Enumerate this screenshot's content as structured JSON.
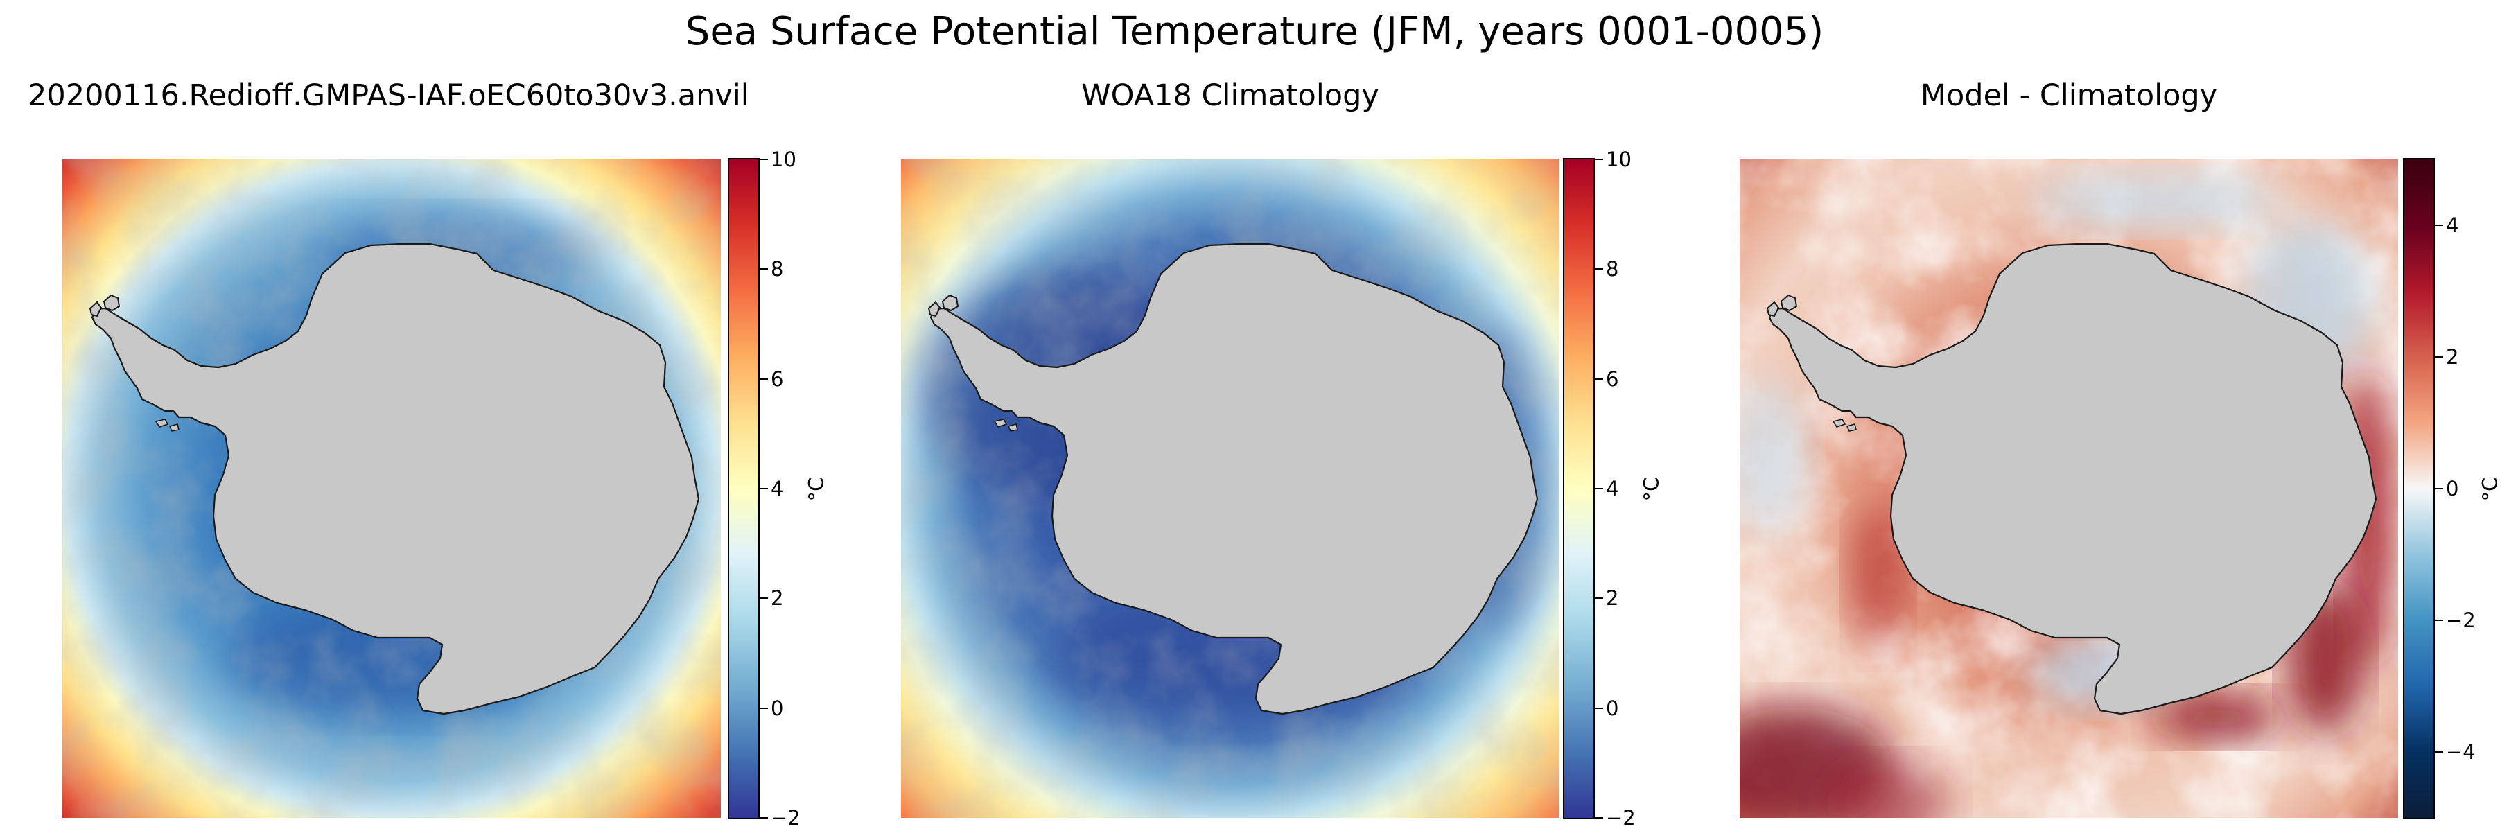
{
  "figure": {
    "title": "Sea Surface Potential Temperature (JFM, years 0001-0005)"
  },
  "panels": [
    {
      "title": "20200116.Redioff.GMPAS-IAF.oEC60to30v3.anvil",
      "colorbar": {
        "label": "°C",
        "tick_labels": [
          "−2",
          "0",
          "2",
          "4",
          "6",
          "8",
          "10"
        ]
      }
    },
    {
      "title": "WOA18 Climatology",
      "colorbar": {
        "label": "°C",
        "tick_labels": [
          "−2",
          "0",
          "2",
          "4",
          "6",
          "8",
          "10"
        ]
      }
    },
    {
      "title": "Model - Climatology",
      "colorbar": {
        "label": "°C",
        "tick_labels": [
          "−4",
          "−2",
          "0",
          "2",
          "4"
        ]
      }
    }
  ],
  "chart_data": [
    {
      "type": "heatmap",
      "title": "20200116.Redioff.GMPAS-IAF.oEC60to30v3.anvil",
      "projection": "south polar stereographic, Antarctica centered",
      "colormap": "RdYlBu_r",
      "colorbar_range": [
        -2,
        10
      ],
      "colorbar_ticks": [
        -2,
        0,
        2,
        4,
        6,
        8,
        10
      ],
      "colorbar_label": "°C",
      "approx_values": {
        "near_coast": 0.5,
        "corners_max": 9
      }
    },
    {
      "type": "heatmap",
      "title": "WOA18 Climatology",
      "projection": "south polar stereographic, Antarctica centered",
      "colormap": "RdYlBu_r",
      "colorbar_range": [
        -2,
        10
      ],
      "colorbar_ticks": [
        -2,
        0,
        2,
        4,
        6,
        8,
        10
      ],
      "colorbar_label": "°C",
      "approx_values": {
        "near_coast": -1.5,
        "corners_max": 7
      }
    },
    {
      "type": "heatmap",
      "title": "Model - Climatology",
      "projection": "south polar stereographic, Antarctica centered",
      "colormap": "RdBu_r",
      "colorbar_range": [
        -5,
        5
      ],
      "colorbar_ticks": [
        -4,
        -2,
        0,
        2,
        4
      ],
      "colorbar_label": "°C",
      "approx_values": {
        "typical": 1.5,
        "coastal_max": 4
      }
    }
  ],
  "colors": {
    "land": "#c8c8c8",
    "coastline": "#1a1a1a"
  }
}
